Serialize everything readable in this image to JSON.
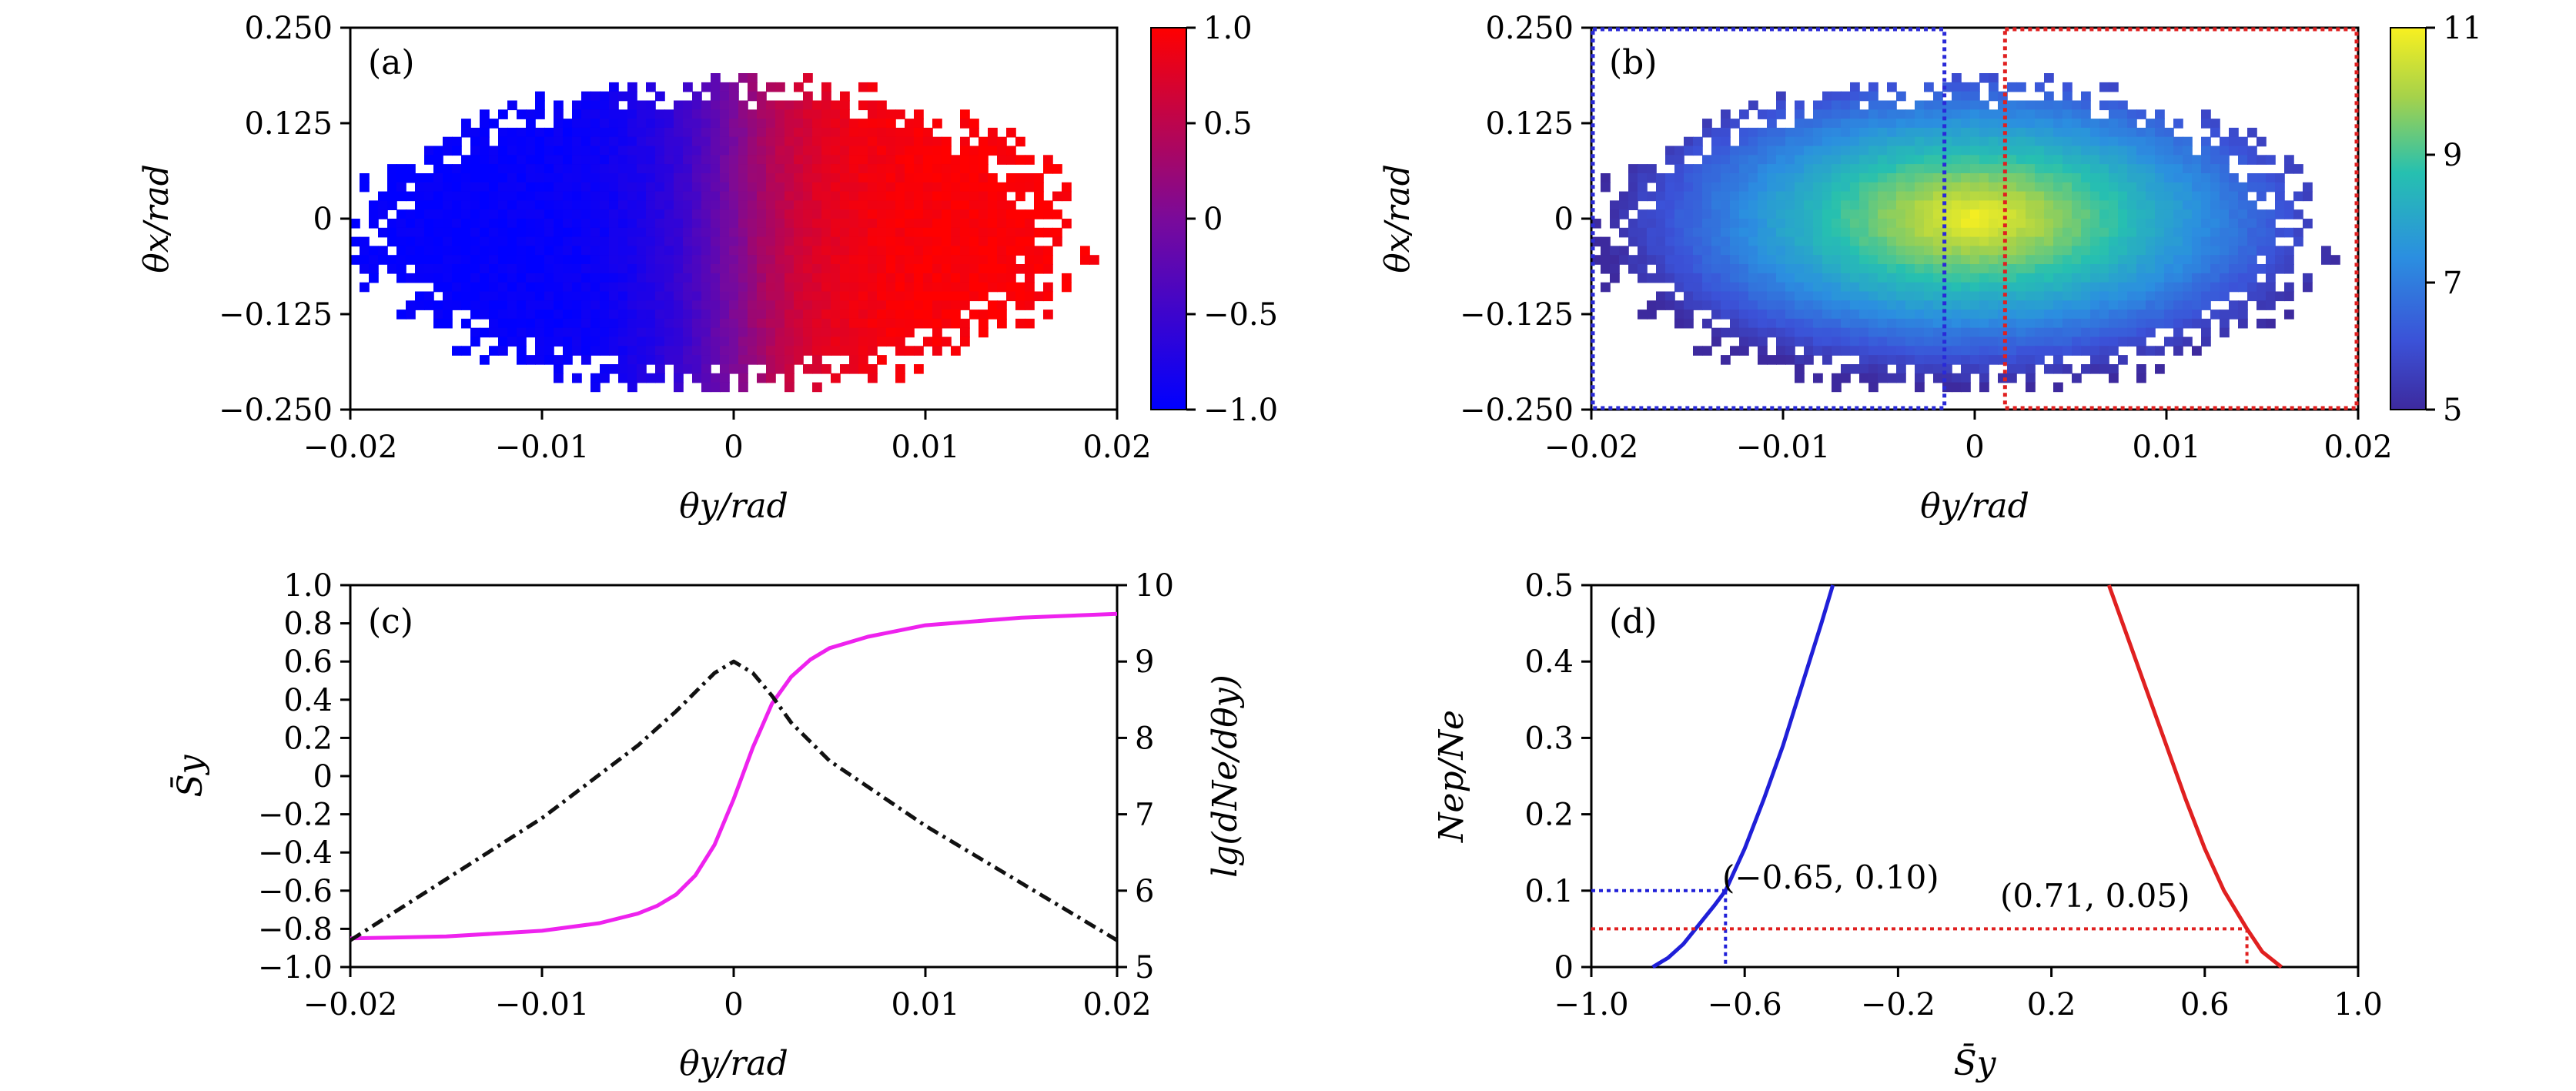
{
  "chart_data": [
    {
      "panel": "(a)",
      "type": "heatmap",
      "xlabel": "θy/rad",
      "ylabel": "θx/rad",
      "xlim": [
        -0.02,
        0.02
      ],
      "ylim": [
        -0.25,
        0.25
      ],
      "xticks": [
        "−0.02",
        "−0.01",
        "0",
        "0.01",
        "0.02"
      ],
      "yticks": [
        "0.250",
        "0.125",
        "0",
        "−0.125",
        "−0.250"
      ],
      "colorbar": {
        "ticks": [
          "1.0",
          "0.5",
          "0",
          "−0.5",
          "−1.0"
        ],
        "range": [
          -1.0,
          1.0
        ],
        "colors": [
          "#0000ff",
          "#7a0a9a",
          "#ff0000"
        ]
      },
      "description_values": {
        "left_mean": -1.0,
        "right_mean": 1.0,
        "transition_center_x": 0.0
      }
    },
    {
      "panel": "(b)",
      "type": "heatmap",
      "xlabel": "θy/rad",
      "ylabel": "θx/rad",
      "xlim": [
        -0.02,
        0.02
      ],
      "ylim": [
        -0.25,
        0.25
      ],
      "xticks": [
        "−0.02",
        "−0.01",
        "0",
        "0.01",
        "0.02"
      ],
      "yticks": [
        "0.250",
        "0.125",
        "0",
        "−0.125",
        "−0.250"
      ],
      "colorbar": {
        "ticks": [
          "11",
          "9",
          "7",
          "5"
        ],
        "range": [
          5,
          11
        ]
      },
      "peak": {
        "x": 0.0,
        "y": 0.0,
        "value": 11
      },
      "regions": [
        {
          "color": "#2a2ad8",
          "x": [
            -0.02,
            -0.0015
          ],
          "y": [
            -0.25,
            0.25
          ]
        },
        {
          "color": "#e02020",
          "x": [
            0.0015,
            0.02
          ],
          "y": [
            -0.25,
            0.25
          ]
        }
      ]
    },
    {
      "panel": "(c)",
      "type": "line",
      "xlabel": "θy/rad",
      "ylabel": "S̄y",
      "ylabel_right": "lg(dNe/dθy)",
      "xlim": [
        -0.02,
        0.02
      ],
      "ylim": [
        -1.0,
        1.0
      ],
      "ylim_right": [
        5,
        10
      ],
      "xticks": [
        "−0.02",
        "−0.01",
        "0",
        "0.01",
        "0.02"
      ],
      "yticks": [
        "1.0",
        "0.8",
        "0.6",
        "0.4",
        "0.2",
        "0",
        "−0.2",
        "−0.4",
        "−0.6",
        "−0.8",
        "−1.0"
      ],
      "yticks_right": [
        "10",
        "9",
        "8",
        "7",
        "6",
        "5"
      ],
      "series": [
        {
          "axis": "left",
          "color": "#ee22ee",
          "style": "solid",
          "x": [
            -0.02,
            -0.015,
            -0.01,
            -0.007,
            -0.005,
            -0.004,
            -0.003,
            -0.002,
            -0.001,
            0.0,
            0.001,
            0.002,
            0.003,
            0.004,
            0.005,
            0.007,
            0.01,
            0.015,
            0.02
          ],
          "y": [
            -0.85,
            -0.84,
            -0.81,
            -0.77,
            -0.72,
            -0.68,
            -0.62,
            -0.52,
            -0.36,
            -0.12,
            0.15,
            0.38,
            0.52,
            0.61,
            0.67,
            0.73,
            0.79,
            0.83,
            0.85
          ]
        },
        {
          "axis": "right",
          "color": "#111111",
          "style": "dashdot",
          "x": [
            -0.02,
            -0.015,
            -0.01,
            -0.005,
            -0.003,
            -0.002,
            -0.001,
            0.0,
            0.001,
            0.002,
            0.003,
            0.005,
            0.01,
            0.015,
            0.02
          ],
          "y": [
            5.35,
            6.15,
            6.95,
            7.9,
            8.35,
            8.6,
            8.85,
            9.0,
            8.85,
            8.55,
            8.2,
            7.7,
            6.85,
            6.1,
            5.35
          ]
        }
      ]
    },
    {
      "panel": "(d)",
      "type": "line",
      "xlabel": "S̄y",
      "ylabel": "Nep/Ne",
      "xlim": [
        -1.0,
        1.0
      ],
      "ylim": [
        0,
        0.5
      ],
      "xticks": [
        "−1.0",
        "−0.6",
        "−0.2",
        "0.2",
        "0.6",
        "1.0"
      ],
      "yticks": [
        "0.5",
        "0.4",
        "0.3",
        "0.2",
        "0.1",
        "0"
      ],
      "series": [
        {
          "color": "#1f1fd8",
          "style": "solid",
          "x": [
            -0.84,
            -0.8,
            -0.76,
            -0.72,
            -0.68,
            -0.65,
            -0.6,
            -0.55,
            -0.5,
            -0.45,
            -0.4,
            -0.37
          ],
          "y": [
            0.0,
            0.012,
            0.03,
            0.055,
            0.08,
            0.1,
            0.155,
            0.22,
            0.29,
            0.37,
            0.45,
            0.5
          ]
        },
        {
          "color": "#e02020",
          "style": "solid",
          "x": [
            0.35,
            0.4,
            0.45,
            0.5,
            0.55,
            0.6,
            0.65,
            0.71,
            0.75,
            0.8
          ],
          "y": [
            0.5,
            0.43,
            0.36,
            0.29,
            0.22,
            0.155,
            0.1,
            0.05,
            0.02,
            0.0
          ]
        }
      ],
      "annotations": [
        {
          "text": "(−0.65, 0.10)",
          "x": -0.65,
          "y": 0.1,
          "color": "#1f1fd8"
        },
        {
          "text": "(0.71, 0.05)",
          "x": 0.71,
          "y": 0.05,
          "color": "#e02020"
        }
      ]
    }
  ]
}
